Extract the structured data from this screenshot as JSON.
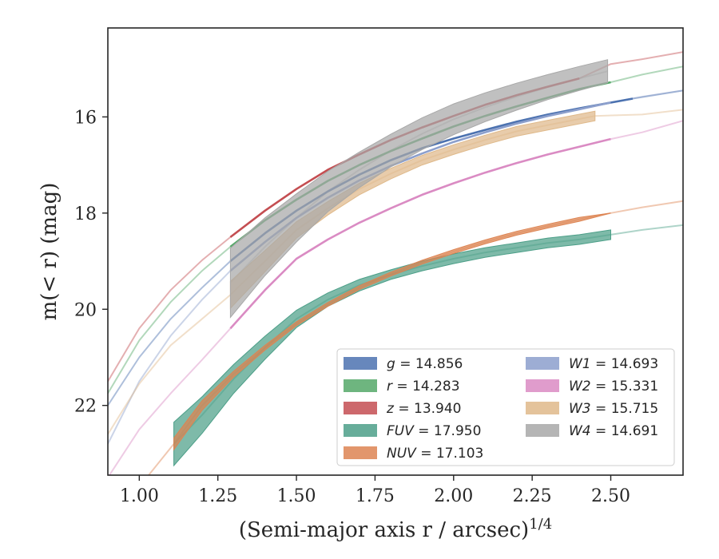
{
  "chart_data": {
    "type": "line",
    "xlabel": "(Semi-major axis r / arcsec)",
    "xlabel_exponent": "1/4",
    "ylabel": "m(< r) (mag)",
    "xlim": [
      0.9,
      2.73
    ],
    "ylim": [
      23.45,
      14.15
    ],
    "y_inverted": true,
    "grid": false,
    "legend_placement": "lower-right",
    "xticks": [
      "1.00",
      "1.25",
      "1.50",
      "1.75",
      "2.00",
      "2.25",
      "2.50"
    ],
    "yticks": [
      "16",
      "18",
      "20",
      "22"
    ],
    "series": [
      {
        "name": "g",
        "total": "14.856",
        "color": "#4c72b0",
        "band": false,
        "x": [
          0.9,
          1.0,
          1.1,
          1.2,
          1.29,
          1.4,
          1.5,
          1.6,
          1.7,
          1.8,
          1.9,
          2.0,
          2.1,
          2.2,
          2.3,
          2.4,
          2.57,
          2.73
        ],
        "y": [
          22.0,
          21.0,
          20.2,
          19.55,
          19.0,
          18.42,
          17.95,
          17.55,
          17.2,
          16.9,
          16.65,
          16.45,
          16.27,
          16.1,
          15.95,
          15.82,
          15.62,
          15.45
        ],
        "solid_from": 1.29,
        "solid_to": 2.57
      },
      {
        "name": "r",
        "total": "14.283",
        "color": "#55a868",
        "band": false,
        "x": [
          0.9,
          1.0,
          1.1,
          1.2,
          1.29,
          1.4,
          1.5,
          1.6,
          1.7,
          1.8,
          1.9,
          2.0,
          2.1,
          2.2,
          2.3,
          2.4,
          2.5,
          2.6,
          2.73
        ],
        "y": [
          21.75,
          20.65,
          19.85,
          19.2,
          18.7,
          18.15,
          17.72,
          17.33,
          17.0,
          16.71,
          16.45,
          16.2,
          15.98,
          15.78,
          15.6,
          15.42,
          15.28,
          15.12,
          14.95
        ],
        "solid_from": 1.29,
        "solid_to": 2.5
      },
      {
        "name": "z",
        "total": "13.940",
        "color": "#c44e52",
        "band": false,
        "x": [
          0.9,
          1.0,
          1.1,
          1.2,
          1.29,
          1.4,
          1.5,
          1.6,
          1.7,
          1.8,
          1.9,
          2.0,
          2.1,
          2.2,
          2.3,
          2.4,
          2.5,
          2.6,
          2.73
        ],
        "y": [
          21.5,
          20.4,
          19.6,
          18.98,
          18.5,
          17.95,
          17.5,
          17.1,
          16.78,
          16.48,
          16.22,
          15.98,
          15.75,
          15.55,
          15.37,
          15.2,
          14.9,
          14.8,
          14.65
        ],
        "solid_from": 1.29,
        "solid_to": 2.48
      },
      {
        "name": "FUV",
        "total": "17.950",
        "color": "#4c9f88",
        "band": true,
        "x": [
          1.11,
          1.2,
          1.3,
          1.4,
          1.5,
          1.6,
          1.7,
          1.8,
          1.9,
          2.0,
          2.1,
          2.2,
          2.3,
          2.4,
          2.5,
          2.6,
          2.73
        ],
        "y": [
          22.8,
          22.2,
          21.45,
          20.8,
          20.2,
          19.8,
          19.5,
          19.28,
          19.1,
          18.95,
          18.82,
          18.72,
          18.62,
          18.55,
          18.45,
          18.35,
          18.25
        ],
        "half_width": [
          0.45,
          0.38,
          0.3,
          0.24,
          0.18,
          0.14,
          0.12,
          0.1,
          0.1,
          0.1,
          0.1,
          0.1,
          0.1,
          0.1,
          0.1,
          0.0,
          0.0
        ],
        "solid_from": 1.11,
        "solid_to": 2.51
      },
      {
        "name": "NUV",
        "total": "17.103",
        "color": "#dd8452",
        "band": true,
        "x": [
          1.03,
          1.11,
          1.2,
          1.3,
          1.4,
          1.5,
          1.6,
          1.7,
          1.8,
          1.9,
          2.0,
          2.1,
          2.2,
          2.3,
          2.4,
          2.5,
          2.6,
          2.73
        ],
        "y": [
          23.45,
          22.8,
          22.0,
          21.35,
          20.8,
          20.3,
          19.9,
          19.55,
          19.27,
          19.02,
          18.8,
          18.6,
          18.42,
          18.27,
          18.13,
          18.0,
          17.88,
          17.75
        ],
        "half_width": [
          0.0,
          0.12,
          0.1,
          0.06,
          0.05,
          0.04,
          0.04,
          0.04,
          0.04,
          0.04,
          0.04,
          0.04,
          0.04,
          0.04,
          0.04,
          0.0,
          0.0,
          0.0
        ],
        "solid_from": 1.11,
        "solid_to": 2.51
      },
      {
        "name": "W1",
        "total": "14.693",
        "color": "#8c9fcc",
        "band": false,
        "x": [
          0.9,
          1.0,
          1.1,
          1.2,
          1.29,
          1.4,
          1.5,
          1.6,
          1.7,
          1.8,
          1.9,
          2.0,
          2.1,
          2.2,
          2.3,
          2.4,
          2.5,
          2.6,
          2.73
        ],
        "y": [
          22.8,
          21.5,
          20.55,
          19.8,
          19.2,
          18.6,
          18.1,
          17.68,
          17.32,
          17.02,
          16.76,
          16.52,
          16.32,
          16.14,
          15.98,
          15.84,
          15.7,
          15.58,
          15.45
        ],
        "solid_from": 1.29,
        "solid_to": 2.5
      },
      {
        "name": "W2",
        "total": "15.331",
        "color": "#da8bc3",
        "band": false,
        "x": [
          0.9,
          1.0,
          1.1,
          1.2,
          1.29,
          1.4,
          1.5,
          1.6,
          1.7,
          1.8,
          1.9,
          2.0,
          2.1,
          2.2,
          2.3,
          2.4,
          2.5,
          2.6,
          2.73
        ],
        "y": [
          23.5,
          22.5,
          21.75,
          21.05,
          20.4,
          19.6,
          18.95,
          18.55,
          18.2,
          17.9,
          17.62,
          17.38,
          17.16,
          16.96,
          16.78,
          16.62,
          16.46,
          16.32,
          16.08
        ],
        "solid_from": 1.29,
        "solid_to": 2.57
      },
      {
        "name": "W3",
        "total": "15.715",
        "color": "#dfb98a",
        "band": true,
        "x": [
          0.9,
          1.0,
          1.1,
          1.2,
          1.29,
          1.4,
          1.5,
          1.6,
          1.7,
          1.8,
          1.9,
          2.0,
          2.1,
          2.2,
          2.3,
          2.45,
          2.6,
          2.73
        ],
        "y": [
          22.6,
          21.55,
          20.75,
          20.2,
          19.7,
          19.0,
          18.35,
          17.9,
          17.5,
          17.18,
          16.9,
          16.68,
          16.48,
          16.3,
          16.17,
          15.98,
          15.95,
          15.85
        ],
        "half_width": [
          0.0,
          0.0,
          0.0,
          0.0,
          0.28,
          0.22,
          0.17,
          0.14,
          0.12,
          0.11,
          0.1,
          0.1,
          0.1,
          0.1,
          0.1,
          0.1,
          0.0,
          0.0
        ],
        "solid_from": 1.29,
        "solid_to": 2.45
      },
      {
        "name": "W4",
        "total": "14.691",
        "color": "#a8a8a8",
        "band": true,
        "x": [
          1.29,
          1.4,
          1.5,
          1.6,
          1.7,
          1.8,
          1.9,
          2.0,
          2.1,
          2.2,
          2.3,
          2.4,
          2.49
        ],
        "y": [
          19.45,
          18.7,
          18.1,
          17.55,
          17.1,
          16.7,
          16.35,
          16.05,
          15.8,
          15.58,
          15.38,
          15.2,
          15.05
        ],
        "half_width": [
          0.72,
          0.6,
          0.5,
          0.42,
          0.37,
          0.34,
          0.33,
          0.32,
          0.3,
          0.28,
          0.26,
          0.25,
          0.24
        ],
        "solid_from": 1.29,
        "solid_to": 2.49
      }
    ]
  }
}
